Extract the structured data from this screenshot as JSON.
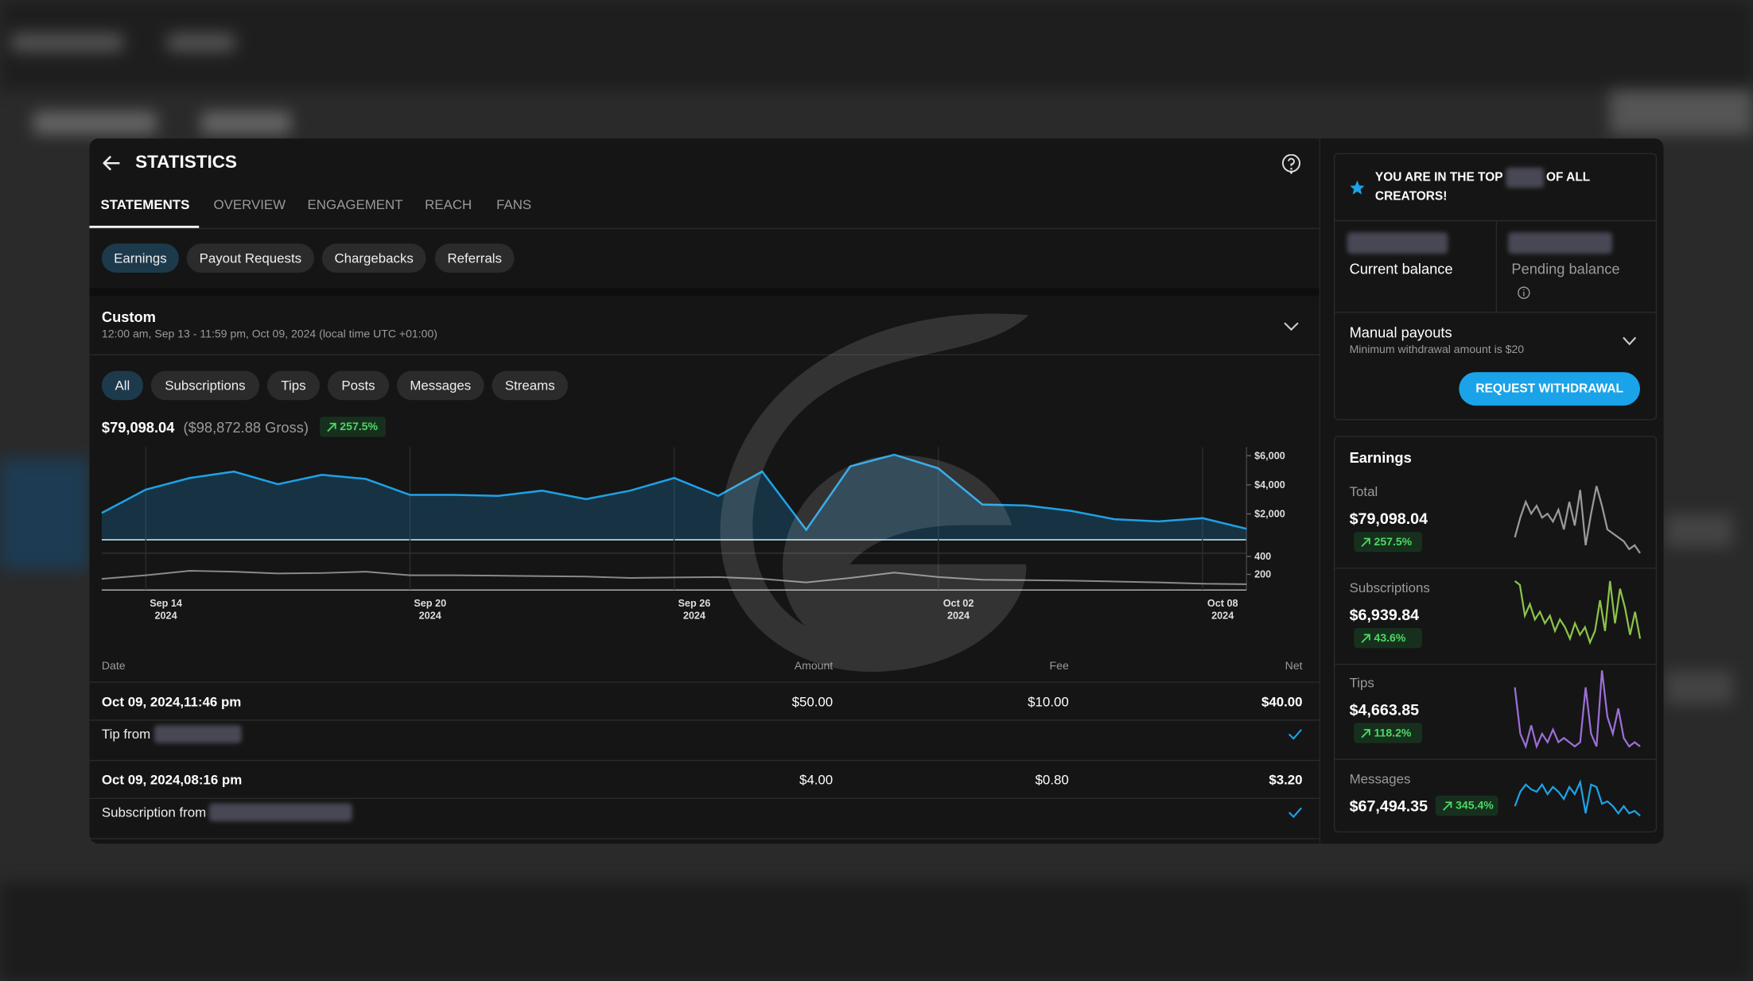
{
  "header": {
    "title": "STATISTICS"
  },
  "tabs": [
    "STATEMENTS",
    "OVERVIEW",
    "ENGAGEMENT",
    "REACH",
    "FANS"
  ],
  "subtabs": [
    "Earnings",
    "Payout Requests",
    "Chargebacks",
    "Referrals"
  ],
  "date_range": {
    "label": "Custom",
    "detail": "12:00 am, Sep 13 - 11:59 pm, Oct 09, 2024 (local time UTC +01:00)"
  },
  "filters": [
    "All",
    "Subscriptions",
    "Tips",
    "Posts",
    "Messages",
    "Streams"
  ],
  "summary": {
    "net": "$79,098.04",
    "gross": "($98,872.88 Gross)",
    "change": "257.5%"
  },
  "chart": {
    "type": "area",
    "series": [
      {
        "color": "#1ea1e6",
        "ylim": [
          0,
          6600
        ],
        "yticks": [
          {
            "value": 2000,
            "label": "$2,000"
          },
          {
            "value": 4000,
            "label": "$4,000"
          },
          {
            "value": 6000,
            "label": "$6,000"
          }
        ],
        "values": [
          2070,
          3670,
          4470,
          4910,
          4040,
          4690,
          4400,
          3310,
          3310,
          3240,
          3600,
          3020,
          3600,
          4470,
          3240,
          4910,
          910,
          5270,
          6070,
          5130,
          2650,
          2580,
          2220,
          1640,
          1490,
          1710,
          980
        ]
      },
      {
        "color": "#8a8a8a",
        "ylim": [
          0,
          425
        ],
        "yticks": [
          200,
          400
        ],
        "values": [
          150,
          190,
          240,
          230,
          210,
          215,
          230,
          190,
          190,
          185,
          180,
          175,
          160,
          165,
          170,
          150,
          110,
          160,
          220,
          170,
          140,
          135,
          130,
          120,
          110,
          95,
          90
        ]
      }
    ],
    "xticks": [
      {
        "label": "Sep 14",
        "year": "2024"
      },
      {
        "label": "Sep 20",
        "year": "2024"
      },
      {
        "label": "Sep 26",
        "year": "2024"
      },
      {
        "label": "Oct 02",
        "year": "2024"
      },
      {
        "label": "Oct 08",
        "year": "2024"
      }
    ]
  },
  "table": {
    "columns": [
      "Date",
      "Amount",
      "Fee",
      "Net"
    ],
    "rows": [
      {
        "date": "Oct 09, 2024,11:46 pm",
        "amount": "$50.00",
        "fee": "$10.00",
        "net": "$40.00",
        "note": "Tip from"
      },
      {
        "date": "Oct 09, 2024,08:16 pm",
        "amount": "$4.00",
        "fee": "$0.80",
        "net": "$3.20",
        "note": "Subscription from"
      }
    ]
  },
  "rank": {
    "prefix": "YOU ARE IN THE TOP",
    "suffix": "OF ALL",
    "line2": "CREATORS!"
  },
  "balances": [
    "Current balance",
    "Pending balance"
  ],
  "payouts": {
    "title": "Manual payouts",
    "note": "Minimum withdrawal amount is $20",
    "button": "REQUEST WITHDRAWAL"
  },
  "earnings": {
    "title": "Earnings",
    "items": [
      {
        "name": "Total",
        "value": "$79,098.04",
        "change": "257.5%",
        "color": "#9a9a9a",
        "spark": [
          30,
          55,
          75,
          60,
          70,
          55,
          60,
          50,
          65,
          40,
          75,
          45,
          90,
          20,
          60,
          95,
          70,
          40,
          35,
          30,
          25,
          15,
          20,
          10
        ]
      },
      {
        "name": "Subscriptions",
        "value": "$6,939.84",
        "change": "43.6%",
        "color": "#8bc34a",
        "spark": [
          85,
          80,
          40,
          55,
          35,
          45,
          30,
          40,
          20,
          35,
          25,
          10,
          30,
          15,
          25,
          5,
          20,
          60,
          20,
          85,
          30,
          75,
          50,
          15,
          45,
          10
        ]
      },
      {
        "name": "Tips",
        "value": "$4,663.85",
        "change": "118.2%",
        "color": "#9b6fd6",
        "spark": [
          75,
          20,
          5,
          30,
          5,
          20,
          10,
          25,
          10,
          15,
          10,
          5,
          10,
          75,
          20,
          5,
          95,
          40,
          20,
          50,
          15,
          5,
          10,
          5
        ]
      },
      {
        "name": "Messages",
        "value": "$67,494.35",
        "change": "345.4%",
        "color": "#1ea1e6",
        "spark": [
          25,
          55,
          70,
          60,
          55,
          70,
          50,
          65,
          55,
          40,
          65,
          50,
          75,
          10,
          70,
          65,
          30,
          35,
          25,
          10,
          25,
          10,
          15,
          5
        ]
      }
    ]
  }
}
